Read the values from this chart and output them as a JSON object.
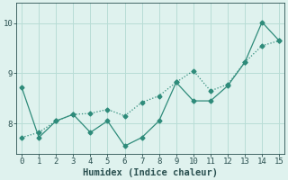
{
  "line1_x": [
    0,
    1,
    2,
    3,
    4,
    5,
    6,
    7,
    8,
    9,
    10,
    11,
    12,
    13,
    14,
    15
  ],
  "line1_y": [
    8.72,
    7.72,
    8.05,
    8.18,
    7.82,
    8.05,
    7.55,
    7.72,
    8.05,
    8.82,
    8.45,
    8.45,
    8.75,
    9.22,
    10.02,
    9.65
  ],
  "line2_x": [
    0,
    1,
    2,
    3,
    4,
    5,
    6,
    7,
    8,
    9,
    10,
    11,
    12,
    13,
    14,
    15
  ],
  "line2_y": [
    7.72,
    7.82,
    8.05,
    8.18,
    8.2,
    8.28,
    8.15,
    8.42,
    8.55,
    8.82,
    9.05,
    8.65,
    8.78,
    9.22,
    9.55,
    9.65
  ],
  "line_color": "#2e8b7a",
  "bg_color": "#dff2ee",
  "grid_color": "#b8ddd6",
  "xlabel": "Humidex (Indice chaleur)",
  "ylim": [
    7.4,
    10.4
  ],
  "xlim": [
    -0.3,
    15.3
  ],
  "yticks": [
    8,
    9,
    10
  ],
  "xticks": [
    0,
    1,
    2,
    3,
    4,
    5,
    6,
    7,
    8,
    9,
    10,
    11,
    12,
    13,
    14,
    15
  ],
  "font_color": "#2a5050",
  "xlabel_fontsize": 7.5,
  "tick_fontsize": 6.5
}
